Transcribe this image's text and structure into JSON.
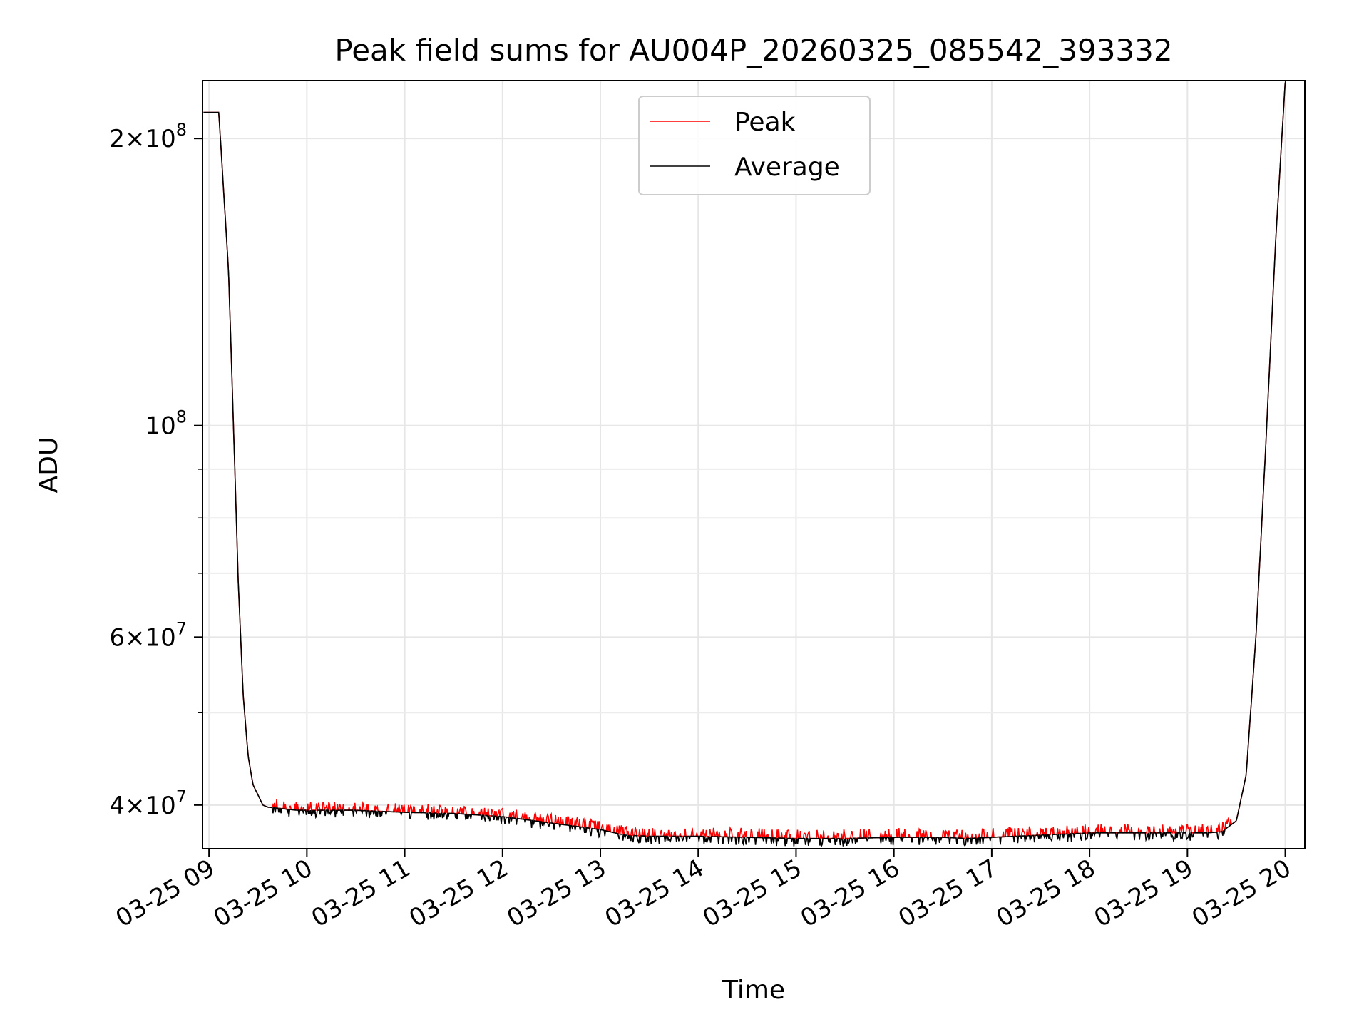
{
  "chart_data": {
    "type": "line",
    "title": "Peak field sums for AU004P_20260325_085542_393332",
    "xlabel": "Time",
    "ylabel": "ADU",
    "yscale": "log",
    "ylim": [
      36000000,
      230000000
    ],
    "xlim": [
      "03-25 08:56",
      "03-25 20:12"
    ],
    "x_tick_labels": [
      "03-25 09",
      "03-25 10",
      "03-25 11",
      "03-25 12",
      "03-25 13",
      "03-25 14",
      "03-25 15",
      "03-25 16",
      "03-25 17",
      "03-25 18",
      "03-25 19",
      "03-25 20"
    ],
    "y_tick_labels": [
      {
        "value": 200000000,
        "mantissa": "2",
        "exponent": "8"
      },
      {
        "value": 100000000,
        "mantissa": "",
        "exponent": "8"
      },
      {
        "value": 60000000,
        "mantissa": "6",
        "exponent": "7"
      },
      {
        "value": 40000000,
        "mantissa": "4",
        "exponent": "7"
      }
    ],
    "y_minor_ticks": [
      50000000,
      70000000,
      80000000,
      90000000
    ],
    "grid": true,
    "legend_position": "top-center",
    "series": [
      {
        "name": "Peak",
        "color": "#ff0000"
      },
      {
        "name": "Average",
        "color": "#000000"
      }
    ],
    "x_hours": [
      9.0,
      9.1,
      9.2,
      9.25,
      9.3,
      9.35,
      9.4,
      9.45,
      9.5,
      9.55,
      9.6,
      9.7,
      9.8,
      9.9,
      10.0,
      10.5,
      11.0,
      11.5,
      12.0,
      12.5,
      13.0,
      13.25,
      13.5,
      14.0,
      14.5,
      15.0,
      15.5,
      16.0,
      16.5,
      16.75,
      17.0,
      17.5,
      18.0,
      18.5,
      19.0,
      19.2,
      19.35,
      19.5,
      19.6,
      19.7,
      19.8,
      19.9,
      20.0
    ],
    "average_values": [
      213000000,
      213000000,
      145000000,
      100000000,
      68000000,
      52000000,
      45000000,
      42000000,
      41000000,
      40000000,
      39800000,
      39700000,
      39600000,
      39500000,
      39500000,
      39500000,
      39300000,
      39200000,
      38900000,
      38300000,
      37700000,
      37200000,
      37100000,
      37100000,
      37000000,
      36900000,
      36900000,
      37000000,
      37000000,
      36900000,
      37000000,
      37200000,
      37400000,
      37400000,
      37400000,
      37400000,
      37500000,
      38500000,
      43000000,
      60000000,
      95000000,
      155000000,
      230000000
    ],
    "peak_spike_amplitude": 600000,
    "average_dip_amplitude": 500000
  }
}
